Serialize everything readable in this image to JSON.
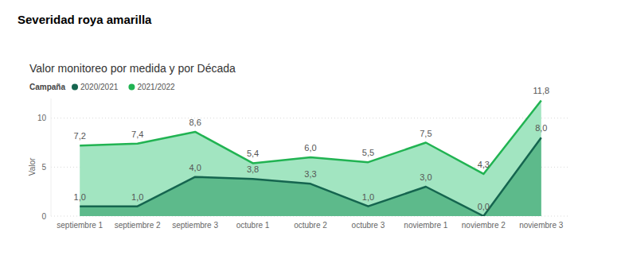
{
  "header": "Severidad roya amarilla",
  "chart_data": {
    "type": "area",
    "title": "Valor monitoreo por medida y por Década",
    "legend_title": "Campaña",
    "y_label": "Valor",
    "categories": [
      "septiembre 1",
      "septiembre 2",
      "septiembre 3",
      "octubre 1",
      "octubre 2",
      "octubre 3",
      "noviembre 1",
      "noviembre 2",
      "noviembre 3"
    ],
    "series": [
      {
        "name": "2020/2021",
        "color": "#15654f",
        "values": [
          1.0,
          1.0,
          4.0,
          3.8,
          3.3,
          1.0,
          3.0,
          0.0,
          8.0
        ],
        "value_labels": [
          "1,0",
          "1,0",
          "4,0",
          "3,8",
          "3,3",
          "1,0",
          "3,0",
          "0,0",
          "8,0"
        ]
      },
      {
        "name": "2021/2022",
        "color": "#21b352",
        "values": [
          7.2,
          7.4,
          8.6,
          5.4,
          6.0,
          5.5,
          7.5,
          4.3,
          11.8
        ],
        "value_labels": [
          "7,2",
          "7,4",
          "8,6",
          "5,4",
          "6,0",
          "5,5",
          "7,5",
          "4,3",
          "11,8"
        ]
      }
    ],
    "ylim": [
      0,
      12
    ],
    "yticks": [
      0,
      5,
      10
    ],
    "grid": true,
    "legend": "top-left",
    "data_labels": true,
    "stacked": false
  }
}
